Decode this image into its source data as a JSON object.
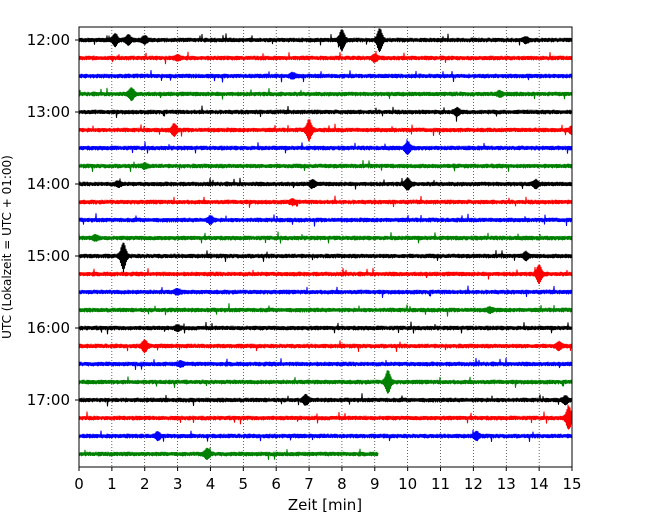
{
  "chart_data": {
    "type": "line",
    "xlabel": "Zeit  [min]",
    "ylabel": "UTC (Lokalzeit = UTC + 01:00)",
    "xlim": [
      0,
      15
    ],
    "x_ticks": [
      "0",
      "1",
      "2",
      "3",
      "4",
      "5",
      "6",
      "7",
      "8",
      "9",
      "10",
      "11",
      "12",
      "13",
      "14",
      "15"
    ],
    "y_ticks": [
      {
        "label": "12:00",
        "trace": 0
      },
      {
        "label": "13:00",
        "trace": 4
      },
      {
        "label": "14:00",
        "trace": 8
      },
      {
        "label": "15:00",
        "trace": 12
      },
      {
        "label": "16:00",
        "trace": 16
      },
      {
        "label": "17:00",
        "trace": 20
      }
    ],
    "grid": "vertical dotted",
    "trace_interval_min": 15,
    "trace_colors": [
      "#000000",
      "#ff0000",
      "#0000ff",
      "#008000"
    ],
    "traces": [
      {
        "start": "12:00",
        "end_min": 15,
        "events": [
          [
            1.1,
            5
          ],
          [
            1.5,
            4
          ],
          [
            2.0,
            3
          ],
          [
            8.0,
            9
          ],
          [
            9.15,
            10
          ],
          [
            13.6,
            2
          ]
        ]
      },
      {
        "start": "12:15",
        "end_min": 15,
        "events": [
          [
            3.0,
            2
          ],
          [
            9.0,
            3
          ]
        ]
      },
      {
        "start": "12:30",
        "end_min": 15,
        "events": [
          [
            6.5,
            2
          ]
        ]
      },
      {
        "start": "12:45",
        "end_min": 15,
        "events": [
          [
            1.6,
            5
          ],
          [
            12.8,
            2
          ]
        ]
      },
      {
        "start": "13:00",
        "end_min": 15,
        "events": [
          [
            11.5,
            3
          ]
        ]
      },
      {
        "start": "13:15",
        "end_min": 15,
        "events": [
          [
            2.9,
            5
          ],
          [
            7.0,
            9
          ],
          [
            15.0,
            3
          ]
        ]
      },
      {
        "start": "13:30",
        "end_min": 15,
        "events": [
          [
            10.0,
            5
          ]
        ]
      },
      {
        "start": "13:45",
        "end_min": 15,
        "events": [
          [
            2.0,
            2
          ]
        ]
      },
      {
        "start": "14:00",
        "end_min": 15,
        "events": [
          [
            1.2,
            2
          ],
          [
            7.1,
            3
          ],
          [
            10.0,
            5
          ],
          [
            13.9,
            3
          ]
        ]
      },
      {
        "start": "14:15",
        "end_min": 15,
        "events": [
          [
            6.5,
            2
          ]
        ]
      },
      {
        "start": "14:30",
        "end_min": 15,
        "events": [
          [
            4.0,
            3
          ]
        ]
      },
      {
        "start": "14:45",
        "end_min": 15,
        "events": [
          [
            0.5,
            2
          ]
        ]
      },
      {
        "start": "15:00",
        "end_min": 15,
        "events": [
          [
            1.35,
            12
          ],
          [
            13.6,
            3
          ]
        ]
      },
      {
        "start": "15:15",
        "end_min": 15,
        "events": [
          [
            14.0,
            8
          ]
        ]
      },
      {
        "start": "15:30",
        "end_min": 15,
        "events": [
          [
            3.0,
            2
          ]
        ]
      },
      {
        "start": "15:45",
        "end_min": 15,
        "events": [
          [
            12.5,
            2
          ]
        ]
      },
      {
        "start": "16:00",
        "end_min": 15,
        "events": [
          [
            3.0,
            2
          ]
        ]
      },
      {
        "start": "16:15",
        "end_min": 15,
        "events": [
          [
            2.0,
            5
          ],
          [
            14.6,
            3
          ]
        ]
      },
      {
        "start": "16:30",
        "end_min": 15,
        "events": [
          [
            3.1,
            2
          ]
        ]
      },
      {
        "start": "16:45",
        "end_min": 15,
        "events": [
          [
            9.4,
            10
          ]
        ]
      },
      {
        "start": "17:00",
        "end_min": 15,
        "events": [
          [
            6.9,
            4
          ],
          [
            14.8,
            3
          ]
        ]
      },
      {
        "start": "17:15",
        "end_min": 15,
        "events": [
          [
            14.9,
            10
          ]
        ]
      },
      {
        "start": "17:30",
        "end_min": 15,
        "events": [
          [
            2.4,
            3
          ],
          [
            12.1,
            3
          ]
        ]
      },
      {
        "start": "17:45",
        "end_min": 9.1,
        "events": [
          [
            3.9,
            4
          ]
        ]
      }
    ]
  }
}
